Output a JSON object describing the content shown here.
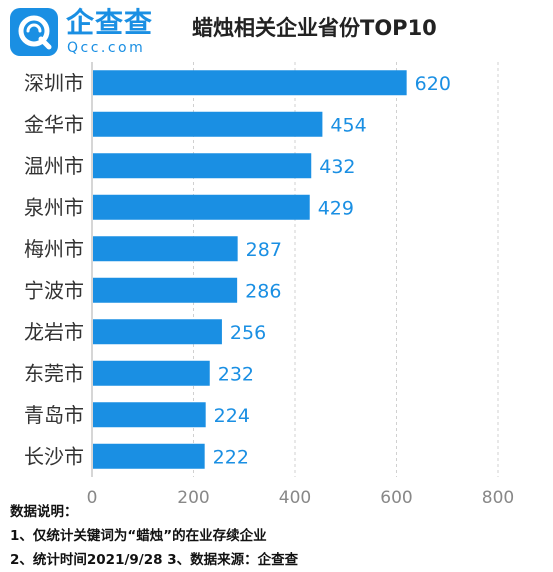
{
  "logo": {
    "name": "企查查",
    "domain": "Qcc.com",
    "icon": "qcc-logo-icon",
    "color": "#1a8fe3"
  },
  "chart_data": {
    "type": "bar",
    "orientation": "horizontal",
    "title": "蜡烛相关企业省份TOP10",
    "categories": [
      "深圳市",
      "金华市",
      "温州市",
      "泉州市",
      "梅州市",
      "宁波市",
      "龙岩市",
      "东莞市",
      "青岛市",
      "长沙市"
    ],
    "values": [
      620,
      454,
      432,
      429,
      287,
      286,
      256,
      232,
      224,
      222
    ],
    "xlim": [
      0,
      800
    ],
    "x_ticks": [
      0,
      200,
      400,
      600,
      800
    ],
    "bar_color": "#1a8fe3",
    "label_color": "#1a8fe3",
    "grid": "vertical-dashed",
    "legend": "none"
  },
  "notes": {
    "heading": "数据说明：",
    "line1": "1、仅统计关键词为“蜡烛”的在业存续企业",
    "line2": "2、统计时间2021/9/28  3、数据来源：企查查"
  }
}
